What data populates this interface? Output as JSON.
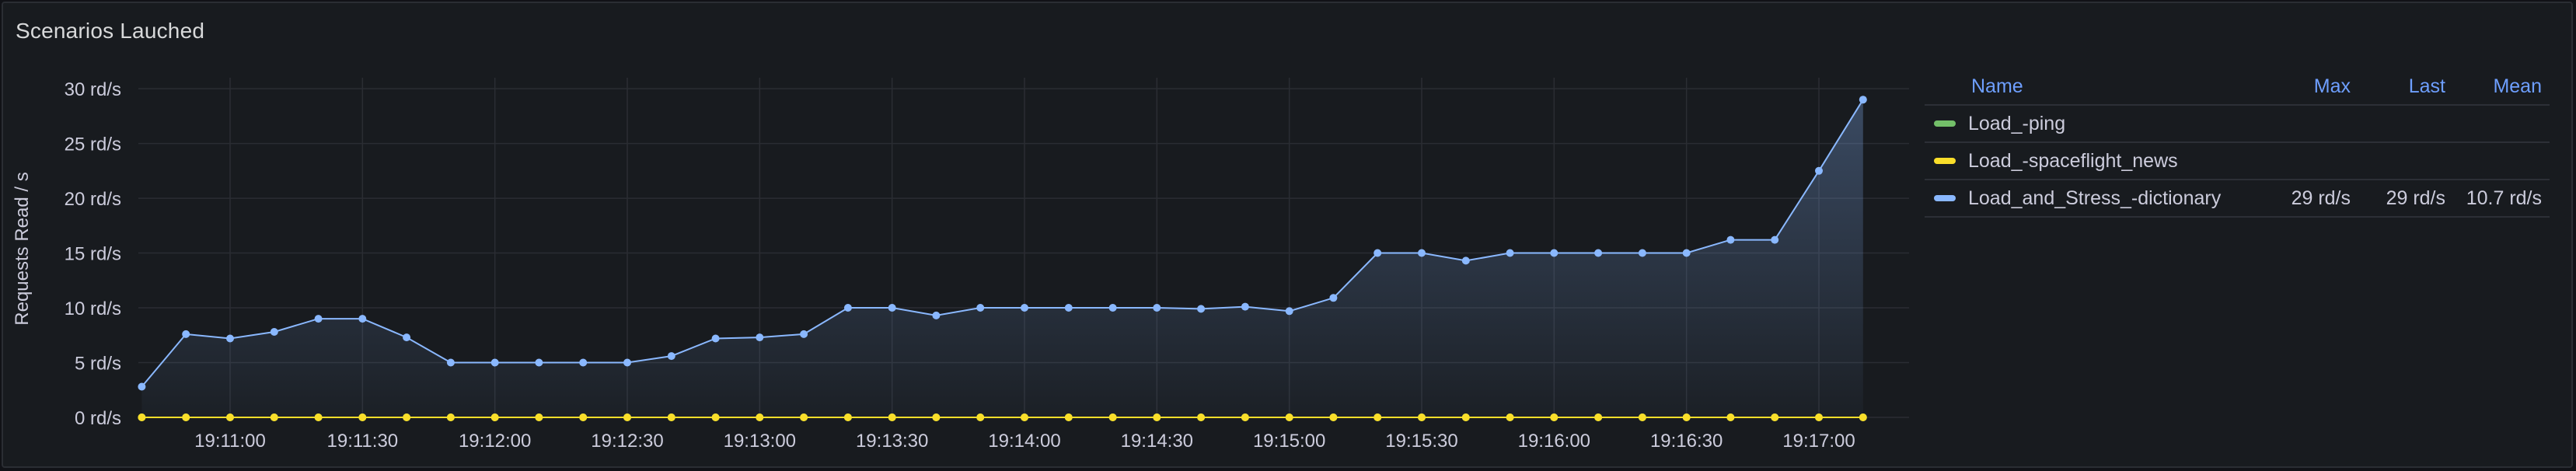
{
  "panel": {
    "title": "Scenarios Lauched"
  },
  "legend": {
    "headers": {
      "name": "Name",
      "max": "Max",
      "last": "Last",
      "mean": "Mean"
    },
    "rows": [
      {
        "name": "Load_-ping",
        "color": "#73bf69",
        "max": "",
        "last": "",
        "mean": ""
      },
      {
        "name": "Load_-spaceflight_news",
        "color": "#fade2a",
        "max": "",
        "last": "",
        "mean": ""
      },
      {
        "name": "Load_and_Stress_-dictionary",
        "color": "#8ab8ff",
        "max": "29 rd/s",
        "last": "29 rd/s",
        "mean": "10.7 rd/s"
      }
    ]
  },
  "chart_data": {
    "type": "line",
    "title": "Scenarios Lauched",
    "ylabel": "Requests Read / s",
    "xlabel": "",
    "ylim": [
      0,
      31
    ],
    "y_ticks": [
      0,
      5,
      10,
      15,
      20,
      25,
      30
    ],
    "y_tick_labels": [
      "0 rd/s",
      "5 rd/s",
      "10 rd/s",
      "15 rd/s",
      "20 rd/s",
      "25 rd/s",
      "30 rd/s"
    ],
    "x_tick_labels": [
      "19:11:00",
      "19:11:30",
      "19:12:00",
      "19:12:30",
      "19:13:00",
      "19:13:30",
      "19:14:00",
      "19:14:30",
      "19:15:00",
      "19:15:30",
      "19:16:00",
      "19:16:30",
      "19:17:00"
    ],
    "x": [
      "19:10:40",
      "19:10:50",
      "19:11:00",
      "19:11:10",
      "19:11:20",
      "19:11:30",
      "19:11:40",
      "19:11:50",
      "19:12:00",
      "19:12:10",
      "19:12:20",
      "19:12:30",
      "19:12:40",
      "19:12:50",
      "19:13:00",
      "19:13:10",
      "19:13:20",
      "19:13:30",
      "19:13:40",
      "19:13:50",
      "19:14:00",
      "19:14:10",
      "19:14:20",
      "19:14:30",
      "19:14:40",
      "19:14:50",
      "19:15:00",
      "19:15:10",
      "19:15:20",
      "19:15:30",
      "19:15:40",
      "19:15:50",
      "19:16:00",
      "19:16:10",
      "19:16:20",
      "19:16:30",
      "19:16:40",
      "19:16:50",
      "19:17:00",
      "19:17:10"
    ],
    "grid": true,
    "legend_position": "right",
    "series": [
      {
        "name": "Load_-ping",
        "color": "#73bf69",
        "values": [
          0,
          0,
          0,
          0,
          0,
          0,
          0,
          0,
          0,
          0,
          0,
          0,
          0,
          0,
          0,
          0,
          0,
          0,
          0,
          0,
          0,
          0,
          0,
          0,
          0,
          0,
          0,
          0,
          0,
          0,
          0,
          0,
          0,
          0,
          0,
          0,
          0,
          0,
          0,
          0
        ]
      },
      {
        "name": "Load_-spaceflight_news",
        "color": "#fade2a",
        "values": [
          0,
          0,
          0,
          0,
          0,
          0,
          0,
          0,
          0,
          0,
          0,
          0,
          0,
          0,
          0,
          0,
          0,
          0,
          0,
          0,
          0,
          0,
          0,
          0,
          0,
          0,
          0,
          0,
          0,
          0,
          0,
          0,
          0,
          0,
          0,
          0,
          0,
          0,
          0,
          0
        ]
      },
      {
        "name": "Load_and_Stress_-dictionary",
        "color": "#8ab8ff",
        "values": [
          2.8,
          7.6,
          7.2,
          7.8,
          9,
          9,
          7.3,
          5,
          5,
          5,
          5,
          5,
          5.6,
          7.2,
          7.3,
          7.6,
          10,
          10,
          9.3,
          10,
          10,
          10,
          10,
          10,
          9.9,
          10.1,
          9.7,
          10.9,
          15,
          15,
          14.3,
          15,
          15,
          15,
          15,
          15,
          16.2,
          16.2,
          22.5,
          29
        ]
      }
    ]
  }
}
